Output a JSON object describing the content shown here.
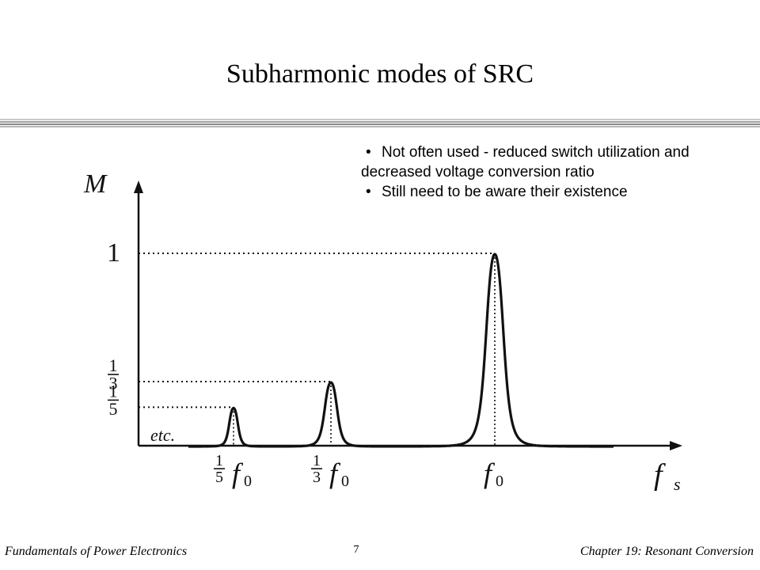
{
  "slide": {
    "title": "Subharmonic modes of SRC",
    "bullets": [
      "Not often used - reduced switch utilization and decreased voltage conversion ratio",
      "Still need to be aware their existence"
    ]
  },
  "footer": {
    "left": "Fundamentals of Power Electronics",
    "page": "7",
    "right": "Chapter 19:  Resonant Conversion"
  },
  "diagram": {
    "y_axis_label": "M",
    "x_axis_label": "f",
    "x_axis_label_sub": "s",
    "etc_label": "etc.",
    "y_levels": [
      {
        "value": 1,
        "whole": "1"
      },
      {
        "value": 0.3333,
        "num": "1",
        "den": "3"
      },
      {
        "value": 0.2,
        "num": "1",
        "den": "5"
      }
    ],
    "peaks": [
      {
        "frequency": 0.2,
        "peak_M": 0.2,
        "num": "1",
        "den": "5",
        "symbol": "f",
        "sub": "0"
      },
      {
        "frequency": 0.3333,
        "peak_M": 0.3333,
        "num": "1",
        "den": "3",
        "symbol": "f",
        "sub": "0"
      },
      {
        "frequency": 1,
        "peak_M": 1,
        "symbol": "f",
        "sub": "0"
      }
    ]
  }
}
